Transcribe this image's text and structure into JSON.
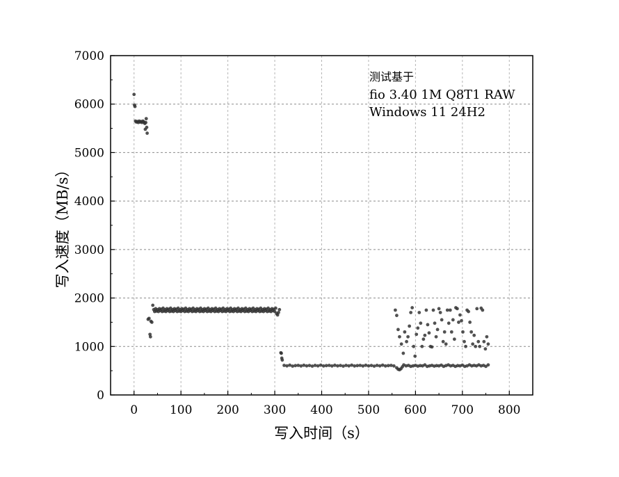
{
  "chart_data": {
    "type": "scatter",
    "title": "",
    "xlabel": "写入时间（s）",
    "ylabel": "写入速度（MB/s）",
    "xlim": [
      -50,
      850
    ],
    "ylim": [
      0,
      7000
    ],
    "x_ticks": [
      0,
      100,
      200,
      300,
      400,
      500,
      600,
      700,
      800
    ],
    "y_ticks": [
      0,
      1000,
      2000,
      3000,
      4000,
      5000,
      6000,
      7000
    ],
    "grid": true,
    "annotation": [
      "测试基于",
      "fio 3.40 1M Q8T1 RAW",
      "Windows 11 24H2"
    ],
    "marker_color": "#333333",
    "series": [
      {
        "points": [
          [
            0,
            6200
          ],
          [
            1,
            5980
          ],
          [
            2,
            5950
          ],
          [
            3,
            5650
          ],
          [
            5,
            5630
          ],
          [
            7,
            5640
          ],
          [
            9,
            5620
          ],
          [
            11,
            5650
          ],
          [
            13,
            5630
          ],
          [
            15,
            5640
          ],
          [
            17,
            5620
          ],
          [
            19,
            5650
          ],
          [
            21,
            5630
          ],
          [
            23,
            5600
          ],
          [
            24,
            5480
          ],
          [
            25,
            5620
          ],
          [
            26,
            5700
          ],
          [
            27,
            5520
          ],
          [
            28,
            5400
          ],
          [
            30,
            1560
          ],
          [
            32,
            1580
          ],
          [
            34,
            1250
          ],
          [
            35,
            1200
          ],
          [
            36,
            1520
          ],
          [
            38,
            1500
          ],
          [
            40,
            1850
          ],
          [
            42,
            1760
          ],
          [
            44,
            1720
          ],
          [
            46,
            1780
          ],
          [
            48,
            1730
          ],
          [
            50,
            1760
          ],
          [
            52,
            1720
          ],
          [
            54,
            1780
          ],
          [
            56,
            1740
          ],
          [
            58,
            1770
          ],
          [
            60,
            1720
          ],
          [
            62,
            1790
          ],
          [
            64,
            1730
          ],
          [
            66,
            1760
          ],
          [
            68,
            1720
          ],
          [
            70,
            1780
          ],
          [
            72,
            1740
          ],
          [
            74,
            1770
          ],
          [
            76,
            1720
          ],
          [
            78,
            1790
          ],
          [
            80,
            1730
          ],
          [
            82,
            1760
          ],
          [
            84,
            1720
          ],
          [
            86,
            1780
          ],
          [
            88,
            1740
          ],
          [
            90,
            1770
          ],
          [
            92,
            1720
          ],
          [
            94,
            1790
          ],
          [
            96,
            1730
          ],
          [
            98,
            1760
          ],
          [
            100,
            1720
          ],
          [
            102,
            1780
          ],
          [
            104,
            1740
          ],
          [
            106,
            1770
          ],
          [
            108,
            1720
          ],
          [
            110,
            1790
          ],
          [
            112,
            1730
          ],
          [
            114,
            1760
          ],
          [
            116,
            1720
          ],
          [
            118,
            1780
          ],
          [
            120,
            1740
          ],
          [
            122,
            1770
          ],
          [
            124,
            1720
          ],
          [
            126,
            1790
          ],
          [
            128,
            1730
          ],
          [
            130,
            1760
          ],
          [
            132,
            1720
          ],
          [
            134,
            1780
          ],
          [
            136,
            1740
          ],
          [
            138,
            1770
          ],
          [
            140,
            1720
          ],
          [
            142,
            1790
          ],
          [
            144,
            1730
          ],
          [
            146,
            1760
          ],
          [
            148,
            1720
          ],
          [
            150,
            1780
          ],
          [
            152,
            1740
          ],
          [
            154,
            1770
          ],
          [
            156,
            1720
          ],
          [
            158,
            1790
          ],
          [
            160,
            1730
          ],
          [
            162,
            1760
          ],
          [
            164,
            1720
          ],
          [
            166,
            1780
          ],
          [
            168,
            1740
          ],
          [
            170,
            1770
          ],
          [
            172,
            1720
          ],
          [
            174,
            1790
          ],
          [
            176,
            1730
          ],
          [
            178,
            1760
          ],
          [
            180,
            1720
          ],
          [
            182,
            1780
          ],
          [
            184,
            1740
          ],
          [
            186,
            1770
          ],
          [
            188,
            1720
          ],
          [
            190,
            1790
          ],
          [
            192,
            1730
          ],
          [
            194,
            1760
          ],
          [
            196,
            1720
          ],
          [
            198,
            1780
          ],
          [
            200,
            1740
          ],
          [
            202,
            1770
          ],
          [
            204,
            1720
          ],
          [
            206,
            1790
          ],
          [
            208,
            1730
          ],
          [
            210,
            1760
          ],
          [
            212,
            1720
          ],
          [
            214,
            1780
          ],
          [
            216,
            1740
          ],
          [
            218,
            1770
          ],
          [
            220,
            1720
          ],
          [
            222,
            1790
          ],
          [
            224,
            1730
          ],
          [
            226,
            1760
          ],
          [
            228,
            1720
          ],
          [
            230,
            1780
          ],
          [
            232,
            1740
          ],
          [
            234,
            1770
          ],
          [
            236,
            1720
          ],
          [
            238,
            1790
          ],
          [
            240,
            1730
          ],
          [
            242,
            1760
          ],
          [
            244,
            1720
          ],
          [
            246,
            1780
          ],
          [
            248,
            1740
          ],
          [
            250,
            1770
          ],
          [
            252,
            1720
          ],
          [
            254,
            1790
          ],
          [
            256,
            1730
          ],
          [
            258,
            1760
          ],
          [
            260,
            1720
          ],
          [
            262,
            1780
          ],
          [
            264,
            1740
          ],
          [
            266,
            1770
          ],
          [
            268,
            1720
          ],
          [
            270,
            1790
          ],
          [
            272,
            1730
          ],
          [
            274,
            1760
          ],
          [
            276,
            1720
          ],
          [
            278,
            1780
          ],
          [
            280,
            1740
          ],
          [
            282,
            1770
          ],
          [
            284,
            1720
          ],
          [
            286,
            1790
          ],
          [
            288,
            1730
          ],
          [
            290,
            1760
          ],
          [
            292,
            1720
          ],
          [
            294,
            1780
          ],
          [
            296,
            1740
          ],
          [
            298,
            1770
          ],
          [
            300,
            1720
          ],
          [
            302,
            1790
          ],
          [
            304,
            1680
          ],
          [
            306,
            1650
          ],
          [
            308,
            1700
          ],
          [
            310,
            1760
          ],
          [
            313,
            870
          ],
          [
            314,
            860
          ],
          [
            315,
            760
          ],
          [
            316,
            720
          ],
          [
            320,
            610
          ],
          [
            326,
            600
          ],
          [
            332,
            615
          ],
          [
            338,
            595
          ],
          [
            344,
            605
          ],
          [
            350,
            610
          ],
          [
            356,
            598
          ],
          [
            362,
            612
          ],
          [
            368,
            600
          ],
          [
            374,
            608
          ],
          [
            380,
            595
          ],
          [
            386,
            610
          ],
          [
            392,
            600
          ],
          [
            398,
            615
          ],
          [
            404,
            598
          ],
          [
            410,
            605
          ],
          [
            416,
            610
          ],
          [
            422,
            598
          ],
          [
            428,
            612
          ],
          [
            434,
            600
          ],
          [
            440,
            608
          ],
          [
            446,
            595
          ],
          [
            452,
            610
          ],
          [
            458,
            600
          ],
          [
            464,
            615
          ],
          [
            470,
            598
          ],
          [
            476,
            605
          ],
          [
            482,
            610
          ],
          [
            488,
            598
          ],
          [
            494,
            612
          ],
          [
            500,
            600
          ],
          [
            506,
            608
          ],
          [
            512,
            595
          ],
          [
            518,
            610
          ],
          [
            524,
            600
          ],
          [
            530,
            615
          ],
          [
            536,
            598
          ],
          [
            542,
            605
          ],
          [
            548,
            610
          ],
          [
            554,
            598
          ],
          [
            560,
            560
          ],
          [
            563,
            530
          ],
          [
            566,
            520
          ],
          [
            569,
            540
          ],
          [
            572,
            580
          ],
          [
            575,
            620
          ],
          [
            580,
            600
          ],
          [
            585,
            610
          ],
          [
            590,
            590
          ],
          [
            595,
            600
          ],
          [
            600,
            610
          ],
          [
            605,
            595
          ],
          [
            610,
            605
          ],
          [
            615,
            600
          ],
          [
            620,
            620
          ],
          [
            625,
            590
          ],
          [
            630,
            600
          ],
          [
            635,
            610
          ],
          [
            640,
            595
          ],
          [
            645,
            605
          ],
          [
            650,
            600
          ],
          [
            655,
            615
          ],
          [
            660,
            590
          ],
          [
            665,
            605
          ],
          [
            670,
            620
          ],
          [
            675,
            600
          ],
          [
            680,
            610
          ],
          [
            685,
            590
          ],
          [
            690,
            605
          ],
          [
            695,
            600
          ],
          [
            700,
            615
          ],
          [
            705,
            590
          ],
          [
            710,
            600
          ],
          [
            715,
            620
          ],
          [
            720,
            600
          ],
          [
            725,
            610
          ],
          [
            730,
            600
          ],
          [
            735,
            620
          ],
          [
            740,
            600
          ],
          [
            745,
            610
          ],
          [
            750,
            590
          ],
          [
            755,
            620
          ],
          [
            557,
            1750
          ],
          [
            560,
            1640
          ],
          [
            563,
            1350
          ],
          [
            566,
            1200
          ],
          [
            570,
            1050
          ],
          [
            574,
            860
          ],
          [
            577,
            1300
          ],
          [
            581,
            1100
          ],
          [
            584,
            1200
          ],
          [
            587,
            1420
          ],
          [
            590,
            1700
          ],
          [
            593,
            1800
          ],
          [
            596,
            1000
          ],
          [
            599,
            800
          ],
          [
            602,
            1250
          ],
          [
            605,
            1380
          ],
          [
            608,
            1700
          ],
          [
            611,
            1480
          ],
          [
            614,
            1000
          ],
          [
            617,
            1150
          ],
          [
            620,
            1230
          ],
          [
            623,
            1750
          ],
          [
            626,
            1450
          ],
          [
            629,
            1280
          ],
          [
            632,
            1000
          ],
          [
            635,
            990
          ],
          [
            638,
            1750
          ],
          [
            641,
            1480
          ],
          [
            644,
            1200
          ],
          [
            647,
            1350
          ],
          [
            650,
            1780
          ],
          [
            653,
            1700
          ],
          [
            656,
            1550
          ],
          [
            659,
            1100
          ],
          [
            662,
            1300
          ],
          [
            665,
            1050
          ],
          [
            668,
            1750
          ],
          [
            671,
            1480
          ],
          [
            674,
            1750
          ],
          [
            677,
            1300
          ],
          [
            680,
            1550
          ],
          [
            683,
            1150
          ],
          [
            686,
            1800
          ],
          [
            689,
            1780
          ],
          [
            692,
            1500
          ],
          [
            695,
            1650
          ],
          [
            698,
            1530
          ],
          [
            701,
            1300
          ],
          [
            704,
            1100
          ],
          [
            707,
            1000
          ],
          [
            710,
            1750
          ],
          [
            713,
            1720
          ],
          [
            716,
            1500
          ],
          [
            719,
            1300
          ],
          [
            722,
            1050
          ],
          [
            725,
            1230
          ],
          [
            728,
            1000
          ],
          [
            731,
            1780
          ],
          [
            734,
            1100
          ],
          [
            737,
            1000
          ],
          [
            740,
            1790
          ],
          [
            743,
            1750
          ],
          [
            746,
            1100
          ],
          [
            749,
            950
          ],
          [
            752,
            1200
          ],
          [
            755,
            1050
          ]
        ]
      }
    ]
  }
}
